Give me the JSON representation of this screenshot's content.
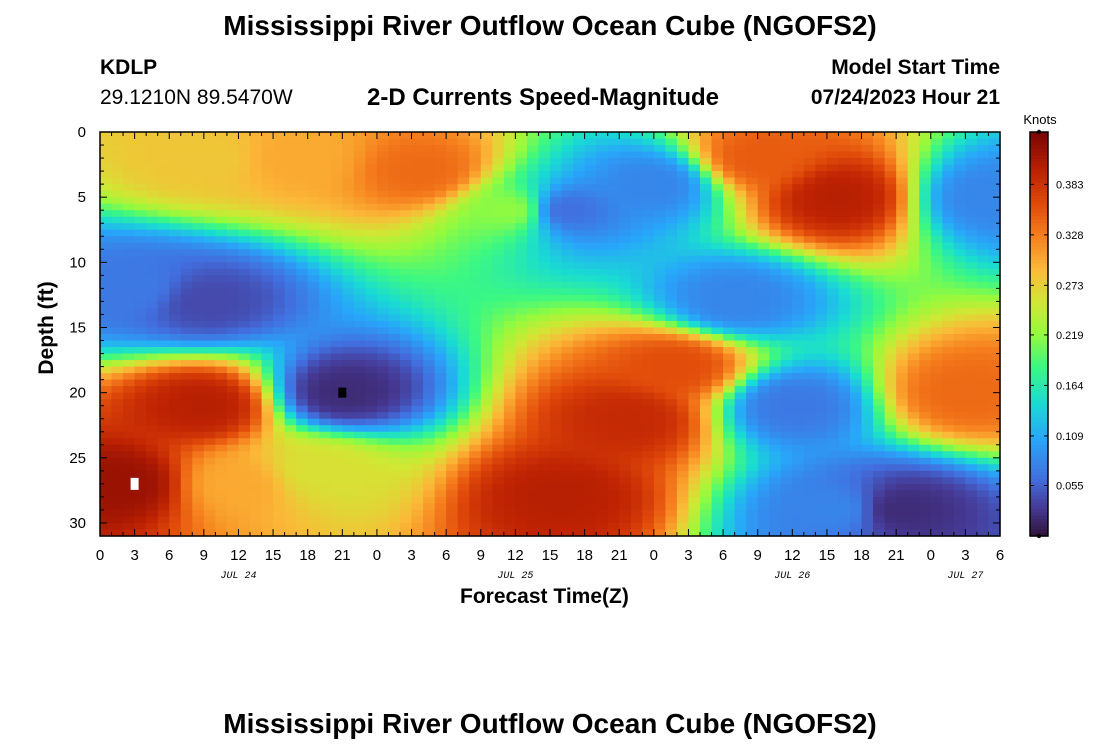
{
  "page": {
    "title": "Mississippi River Outflow Ocean Cube (NGOFS2)",
    "station_id": "KDLP",
    "coordinates": "29.1210N  89.5470W",
    "subtitle": "2-D Currents Speed-Magnitude",
    "model_start_label": "Model Start Time",
    "model_start_value": "07/24/2023 Hour 21",
    "second_title": "Mississippi River Outflow Ocean Cube (NGOFS2)"
  },
  "chart_data": {
    "type": "heatmap",
    "xlabel": "Forecast Time(Z)",
    "ylabel": "Depth (ft)",
    "x_range_hours": [
      0,
      78
    ],
    "y_range_ft": [
      0,
      31
    ],
    "x_ticks": [
      "0",
      "3",
      "6",
      "9",
      "12",
      "15",
      "18",
      "21",
      "0",
      "3",
      "6",
      "9",
      "12",
      "15",
      "18",
      "21",
      "0",
      "3",
      "6",
      "9",
      "12",
      "15",
      "18",
      "21",
      "0",
      "3",
      "6"
    ],
    "y_ticks": [
      "0",
      "5",
      "10",
      "15",
      "20",
      "25",
      "30"
    ],
    "date_labels": [
      {
        "label": "JUL 24",
        "hour": 12
      },
      {
        "label": "JUL 25",
        "hour": 36
      },
      {
        "label": "JUL 26",
        "hour": 60
      },
      {
        "label": "JUL 27",
        "hour": 75
      }
    ],
    "colorbar": {
      "title": "Knots",
      "ticks": [
        "0.055",
        "0.109",
        "0.164",
        "0.219",
        "0.273",
        "0.328",
        "0.383"
      ],
      "tick_values": [
        0.055,
        0.109,
        0.164,
        0.219,
        0.273,
        0.328,
        0.383
      ],
      "range": [
        0.0,
        0.44
      ]
    },
    "field_features": [
      {
        "hour": 28,
        "depth": 3,
        "speed": 0.34
      },
      {
        "hour": 17,
        "depth": 2,
        "speed": 0.3
      },
      {
        "hour": 9,
        "depth": 2,
        "speed": 0.28
      },
      {
        "hour": 36,
        "depth": 6,
        "speed": 0.22
      },
      {
        "hour": 9,
        "depth": 13,
        "speed": 0.04
      },
      {
        "hour": 3,
        "depth": 12,
        "speed": 0.07
      },
      {
        "hour": 21,
        "depth": 20,
        "speed": 0.02
      },
      {
        "hour": 9,
        "depth": 21,
        "speed": 0.4
      },
      {
        "hour": 2,
        "depth": 27,
        "speed": 0.42
      },
      {
        "hour": 12,
        "depth": 27,
        "speed": 0.3
      },
      {
        "hour": 19,
        "depth": 26,
        "speed": 0.26
      },
      {
        "hour": 40,
        "depth": 6,
        "speed": 0.06
      },
      {
        "hour": 48,
        "depth": 4,
        "speed": 0.08
      },
      {
        "hour": 46,
        "depth": 22,
        "speed": 0.39
      },
      {
        "hour": 40,
        "depth": 28,
        "speed": 0.4
      },
      {
        "hour": 50,
        "depth": 18,
        "speed": 0.36
      },
      {
        "hour": 55,
        "depth": 13,
        "speed": 0.08
      },
      {
        "hour": 60,
        "depth": 21,
        "speed": 0.07
      },
      {
        "hour": 64,
        "depth": 5,
        "speed": 0.4
      },
      {
        "hour": 57,
        "depth": 2,
        "speed": 0.35
      },
      {
        "hour": 77,
        "depth": 5,
        "speed": 0.08
      },
      {
        "hour": 75,
        "depth": 20,
        "speed": 0.34
      },
      {
        "hour": 69,
        "depth": 29,
        "speed": 0.02
      },
      {
        "hour": 64,
        "depth": 29,
        "speed": 0.08
      }
    ],
    "min_marker": {
      "hour": 21,
      "depth": 20
    },
    "max_marker": {
      "hour": 3,
      "depth": 27
    }
  }
}
